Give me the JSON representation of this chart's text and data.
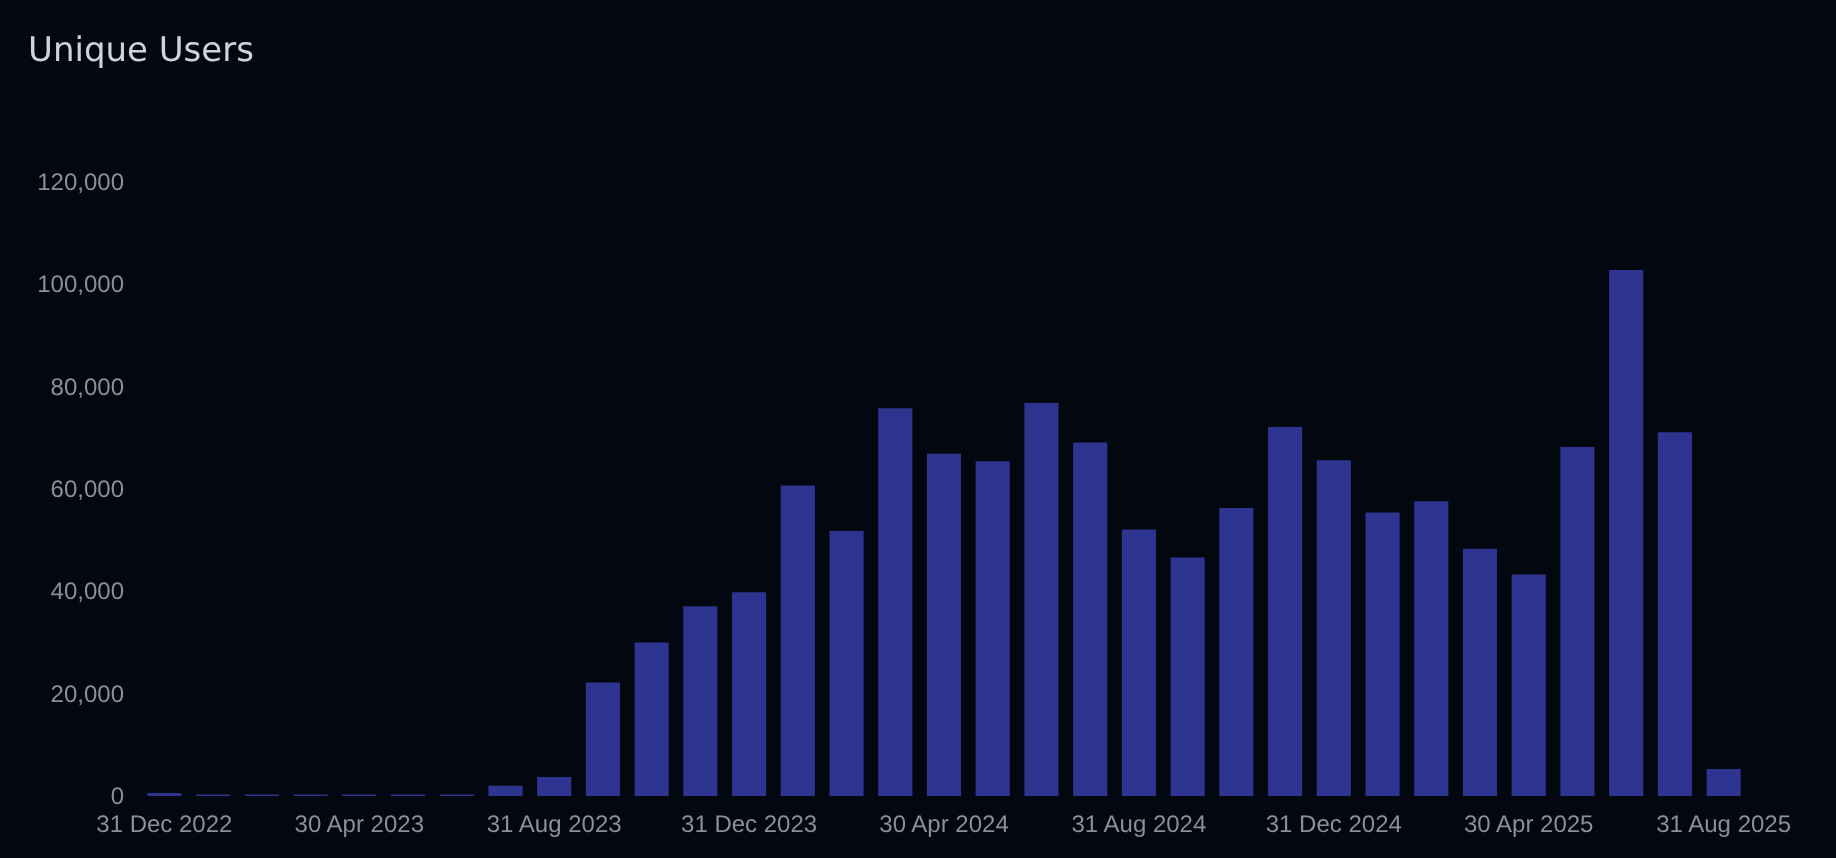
{
  "chart_data": {
    "type": "bar",
    "title": "Unique Users",
    "categories": [
      "31 Dec 2022",
      null,
      null,
      null,
      "30 Apr 2023",
      null,
      null,
      null,
      "31 Aug 2023",
      null,
      null,
      null,
      "31 Dec 2023",
      null,
      null,
      null,
      "30 Apr 2024",
      null,
      null,
      null,
      "31 Aug 2024",
      null,
      null,
      null,
      "31 Dec 2024",
      null,
      null,
      null,
      "30 Apr 2025",
      null,
      null,
      null,
      "31 Aug 2025"
    ],
    "values": [
      600,
      300,
      300,
      300,
      300,
      300,
      300,
      2000,
      3700,
      22200,
      30000,
      37100,
      39800,
      60700,
      51800,
      75800,
      66900,
      65400,
      76800,
      69100,
      52100,
      46600,
      56300,
      72100,
      65600,
      55400,
      57600,
      48300,
      43300,
      68200,
      102800,
      71100,
      5300
    ],
    "color": "#2e3590",
    "ylim": [
      0,
      120000
    ],
    "yticks": [
      0,
      {
        "value": 20000,
        "label": "20,000"
      },
      {
        "value": 40000,
        "label": "40,000"
      },
      {
        "value": 60000,
        "label": "60,000"
      },
      {
        "value": 80000,
        "label": "80,000"
      },
      {
        "value": 100000,
        "label": "100,000"
      },
      {
        "value": 120000,
        "label": "120,000"
      }
    ],
    "grid": false
  }
}
